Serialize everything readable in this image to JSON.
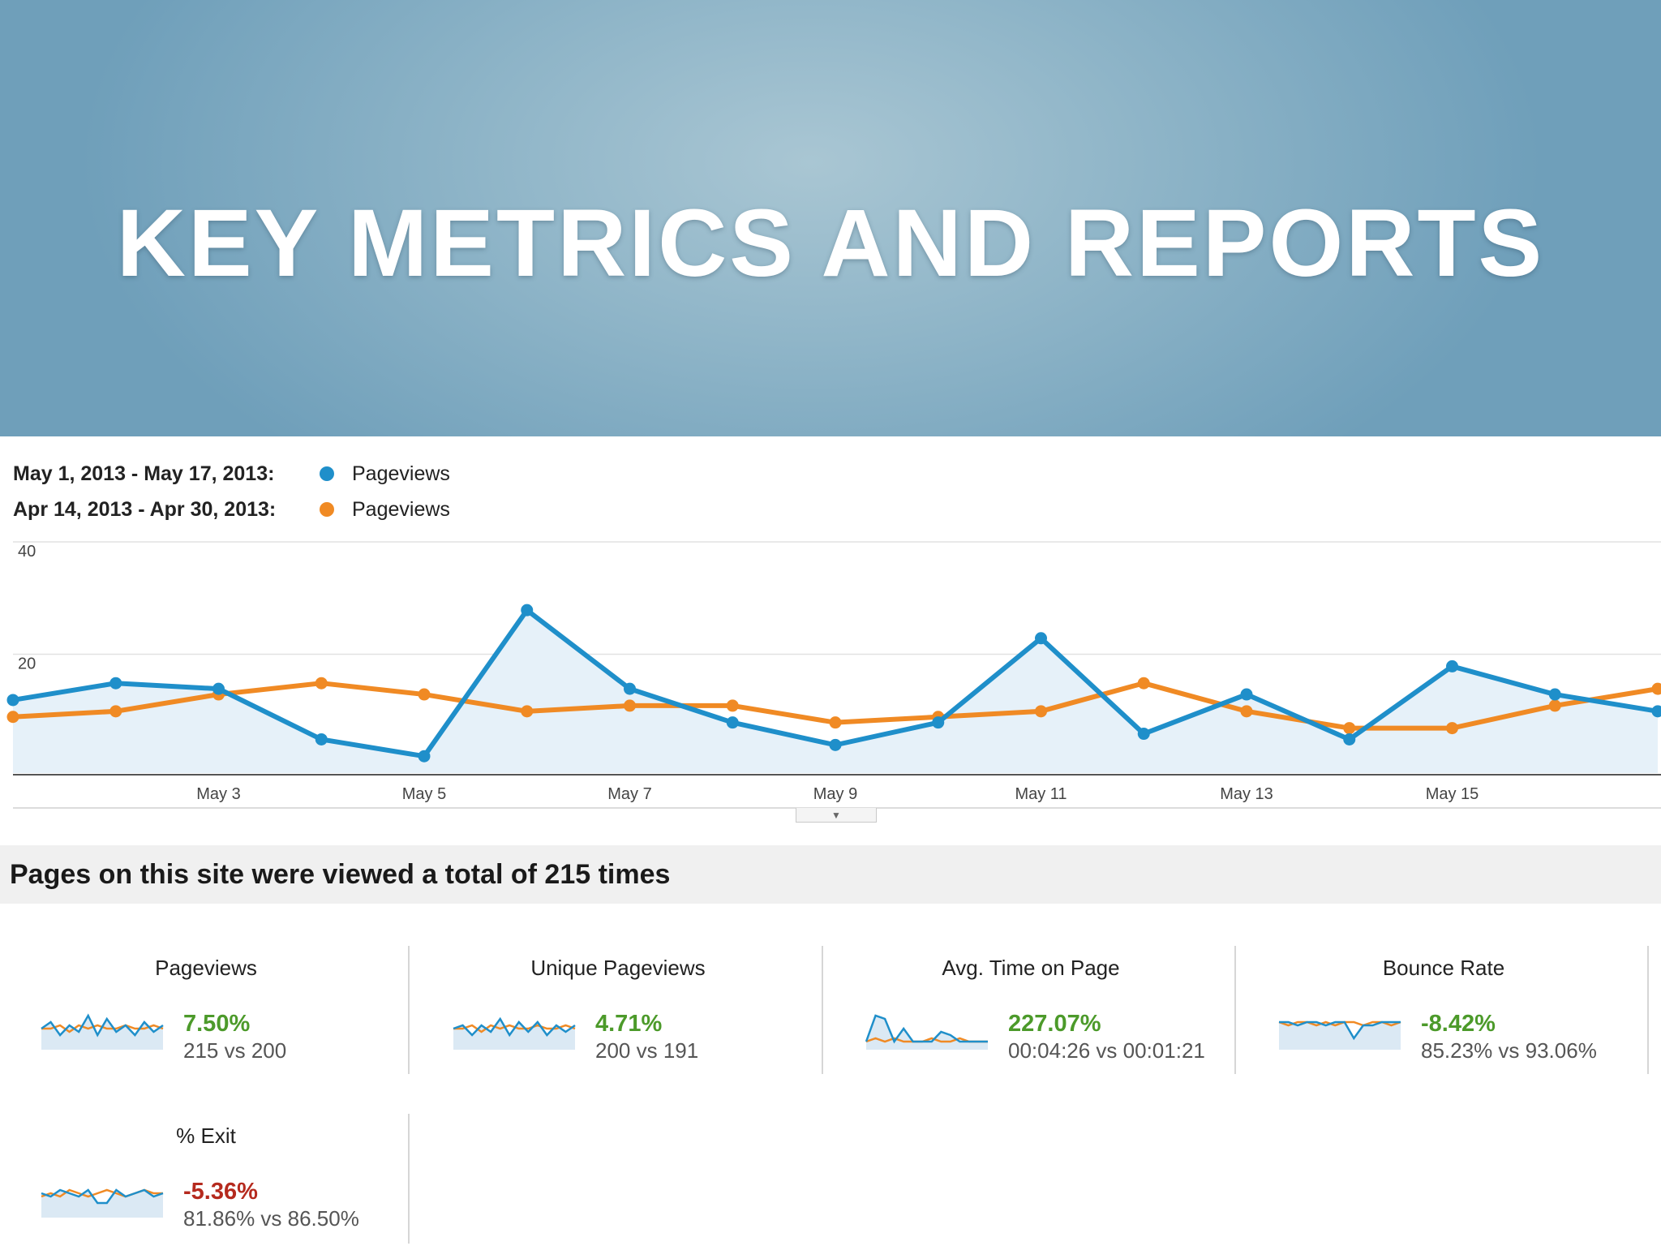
{
  "banner": {
    "title": "KEY METRICS AND REPORTS"
  },
  "legend": [
    {
      "range": "May 1, 2013 - May 17, 2013:",
      "label": "Pageviews",
      "color": "#1f8fca"
    },
    {
      "range": "Apr 14, 2013 - Apr 30, 2013:",
      "label": "Pageviews",
      "color": "#f08a24"
    }
  ],
  "chart_data": {
    "type": "line",
    "title": "",
    "xlabel": "",
    "ylabel": "",
    "ylim": [
      0,
      40
    ],
    "yticks": [
      "40",
      "20"
    ],
    "x": [
      "May 1",
      "May 2",
      "May 3",
      "May 4",
      "May 5",
      "May 6",
      "May 7",
      "May 8",
      "May 9",
      "May 10",
      "May 11",
      "May 12",
      "May 13",
      "May 14",
      "May 15",
      "May 16",
      "May 17"
    ],
    "x_tick_labels": [
      "May 3",
      "May 5",
      "May 7",
      "May 9",
      "May 11",
      "May 13",
      "May 15"
    ],
    "grid": true,
    "series": [
      {
        "name": "Pageviews",
        "color": "#1f8fca",
        "area": true,
        "values": [
          13,
          16,
          15,
          6,
          3,
          29,
          15,
          9,
          5,
          9,
          24,
          7,
          14,
          6,
          19,
          14,
          11
        ]
      },
      {
        "name": "Pageviews",
        "color": "#f08a24",
        "area": false,
        "values": [
          10,
          11,
          14,
          16,
          14,
          11,
          12,
          12,
          9,
          10,
          11,
          16,
          11,
          8,
          8,
          12,
          15
        ]
      }
    ]
  },
  "collapse_tab": {
    "glyph": "▼"
  },
  "summary": {
    "text": "Pages on this site were viewed a total of 215 times"
  },
  "metrics": [
    {
      "title": "Pageviews",
      "change": "7.50%",
      "trend": "positive",
      "compare": "215 vs 200",
      "spark_a": [
        5,
        7,
        3,
        6,
        4,
        9,
        3,
        8,
        4,
        6,
        3,
        7,
        4,
        6
      ],
      "spark_b": [
        5,
        5,
        6,
        4,
        6,
        5,
        6,
        5,
        5,
        6,
        5,
        5,
        6,
        5
      ]
    },
    {
      "title": "Unique Pageviews",
      "change": "4.71%",
      "trend": "positive",
      "compare": "200 vs 191",
      "spark_a": [
        5,
        6,
        3,
        6,
        4,
        8,
        3,
        7,
        4,
        7,
        3,
        6,
        4,
        6
      ],
      "spark_b": [
        5,
        5,
        6,
        4,
        6,
        5,
        6,
        5,
        5,
        6,
        5,
        5,
        6,
        5
      ]
    },
    {
      "title": "Avg. Time on Page",
      "change": "227.07%",
      "trend": "positive",
      "compare": "00:04:26 vs 00:01:21",
      "spark_a": [
        1,
        9,
        8,
        1,
        5,
        1,
        1,
        1,
        4,
        3,
        1,
        1,
        1,
        1
      ],
      "spark_b": [
        1,
        2,
        1,
        2,
        1,
        1,
        1,
        2,
        1,
        1,
        2,
        1,
        1,
        1
      ]
    },
    {
      "title": "Bounce Rate",
      "change": "-8.42%",
      "trend": "positive",
      "compare": "85.23% vs 93.06%",
      "spark_a": [
        7,
        7,
        6,
        7,
        7,
        6,
        7,
        7,
        2,
        6,
        6,
        7,
        7,
        7
      ],
      "spark_b": [
        7,
        6,
        7,
        7,
        6,
        7,
        6,
        7,
        7,
        6,
        7,
        7,
        6,
        7
      ]
    },
    {
      "title": "% Exit",
      "change": "-5.36%",
      "trend": "negative",
      "compare": "81.86% vs 86.50%",
      "spark_a": [
        6,
        5,
        7,
        6,
        5,
        7,
        3,
        3,
        7,
        5,
        6,
        7,
        5,
        6
      ],
      "spark_b": [
        5,
        6,
        5,
        7,
        6,
        5,
        6,
        7,
        6,
        5,
        6,
        7,
        6,
        6
      ]
    }
  ]
}
